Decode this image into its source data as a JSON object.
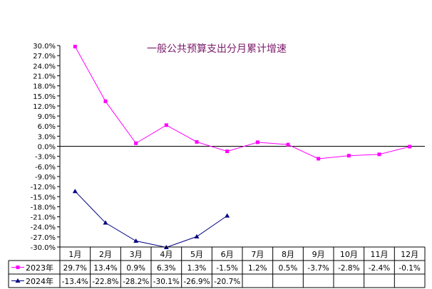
{
  "chart_data": {
    "type": "line",
    "title": "一般公共预算支出分月累计增速",
    "categories": [
      "1月",
      "2月",
      "3月",
      "4月",
      "5月",
      "6月",
      "7月",
      "8月",
      "9月",
      "10月",
      "11月",
      "12月"
    ],
    "y_ticks": [
      "30.0%",
      "27.0%",
      "24.0%",
      "21.0%",
      "18.0%",
      "15.0%",
      "12.0%",
      "9.0%",
      "6.0%",
      "3.0%",
      "0.0%",
      "-3.0%",
      "-6.0%",
      "-9.0%",
      "-12.0%",
      "-15.0%",
      "-18.0%",
      "-21.0%",
      "-24.0%",
      "-27.0%",
      "-30.0%"
    ],
    "ylim": [
      -30,
      30
    ],
    "ystep": 3,
    "series": [
      {
        "name": "2023年",
        "color": "#ff00ff",
        "marker": "square",
        "values": [
          29.7,
          13.4,
          0.9,
          6.3,
          1.3,
          -1.5,
          1.2,
          0.5,
          -3.7,
          -2.8,
          -2.4,
          -0.1
        ],
        "labels": [
          "29.7%",
          "13.4%",
          "0.9%",
          "6.3%",
          "1.3%",
          "-1.5%",
          "1.2%",
          "0.5%",
          "-3.7%",
          "-2.8%",
          "-2.4%",
          "-0.1%"
        ]
      },
      {
        "name": "2024年",
        "color": "#000080",
        "marker": "triangle",
        "values": [
          -13.4,
          -22.8,
          -28.2,
          -30.1,
          -26.9,
          -20.7,
          null,
          null,
          null,
          null,
          null,
          null
        ],
        "labels": [
          "-13.4%",
          "-22.8%",
          "-28.2%",
          "-30.1%",
          "-26.9%",
          "-20.7%",
          "",
          "",
          "",
          "",
          "",
          ""
        ]
      }
    ]
  }
}
